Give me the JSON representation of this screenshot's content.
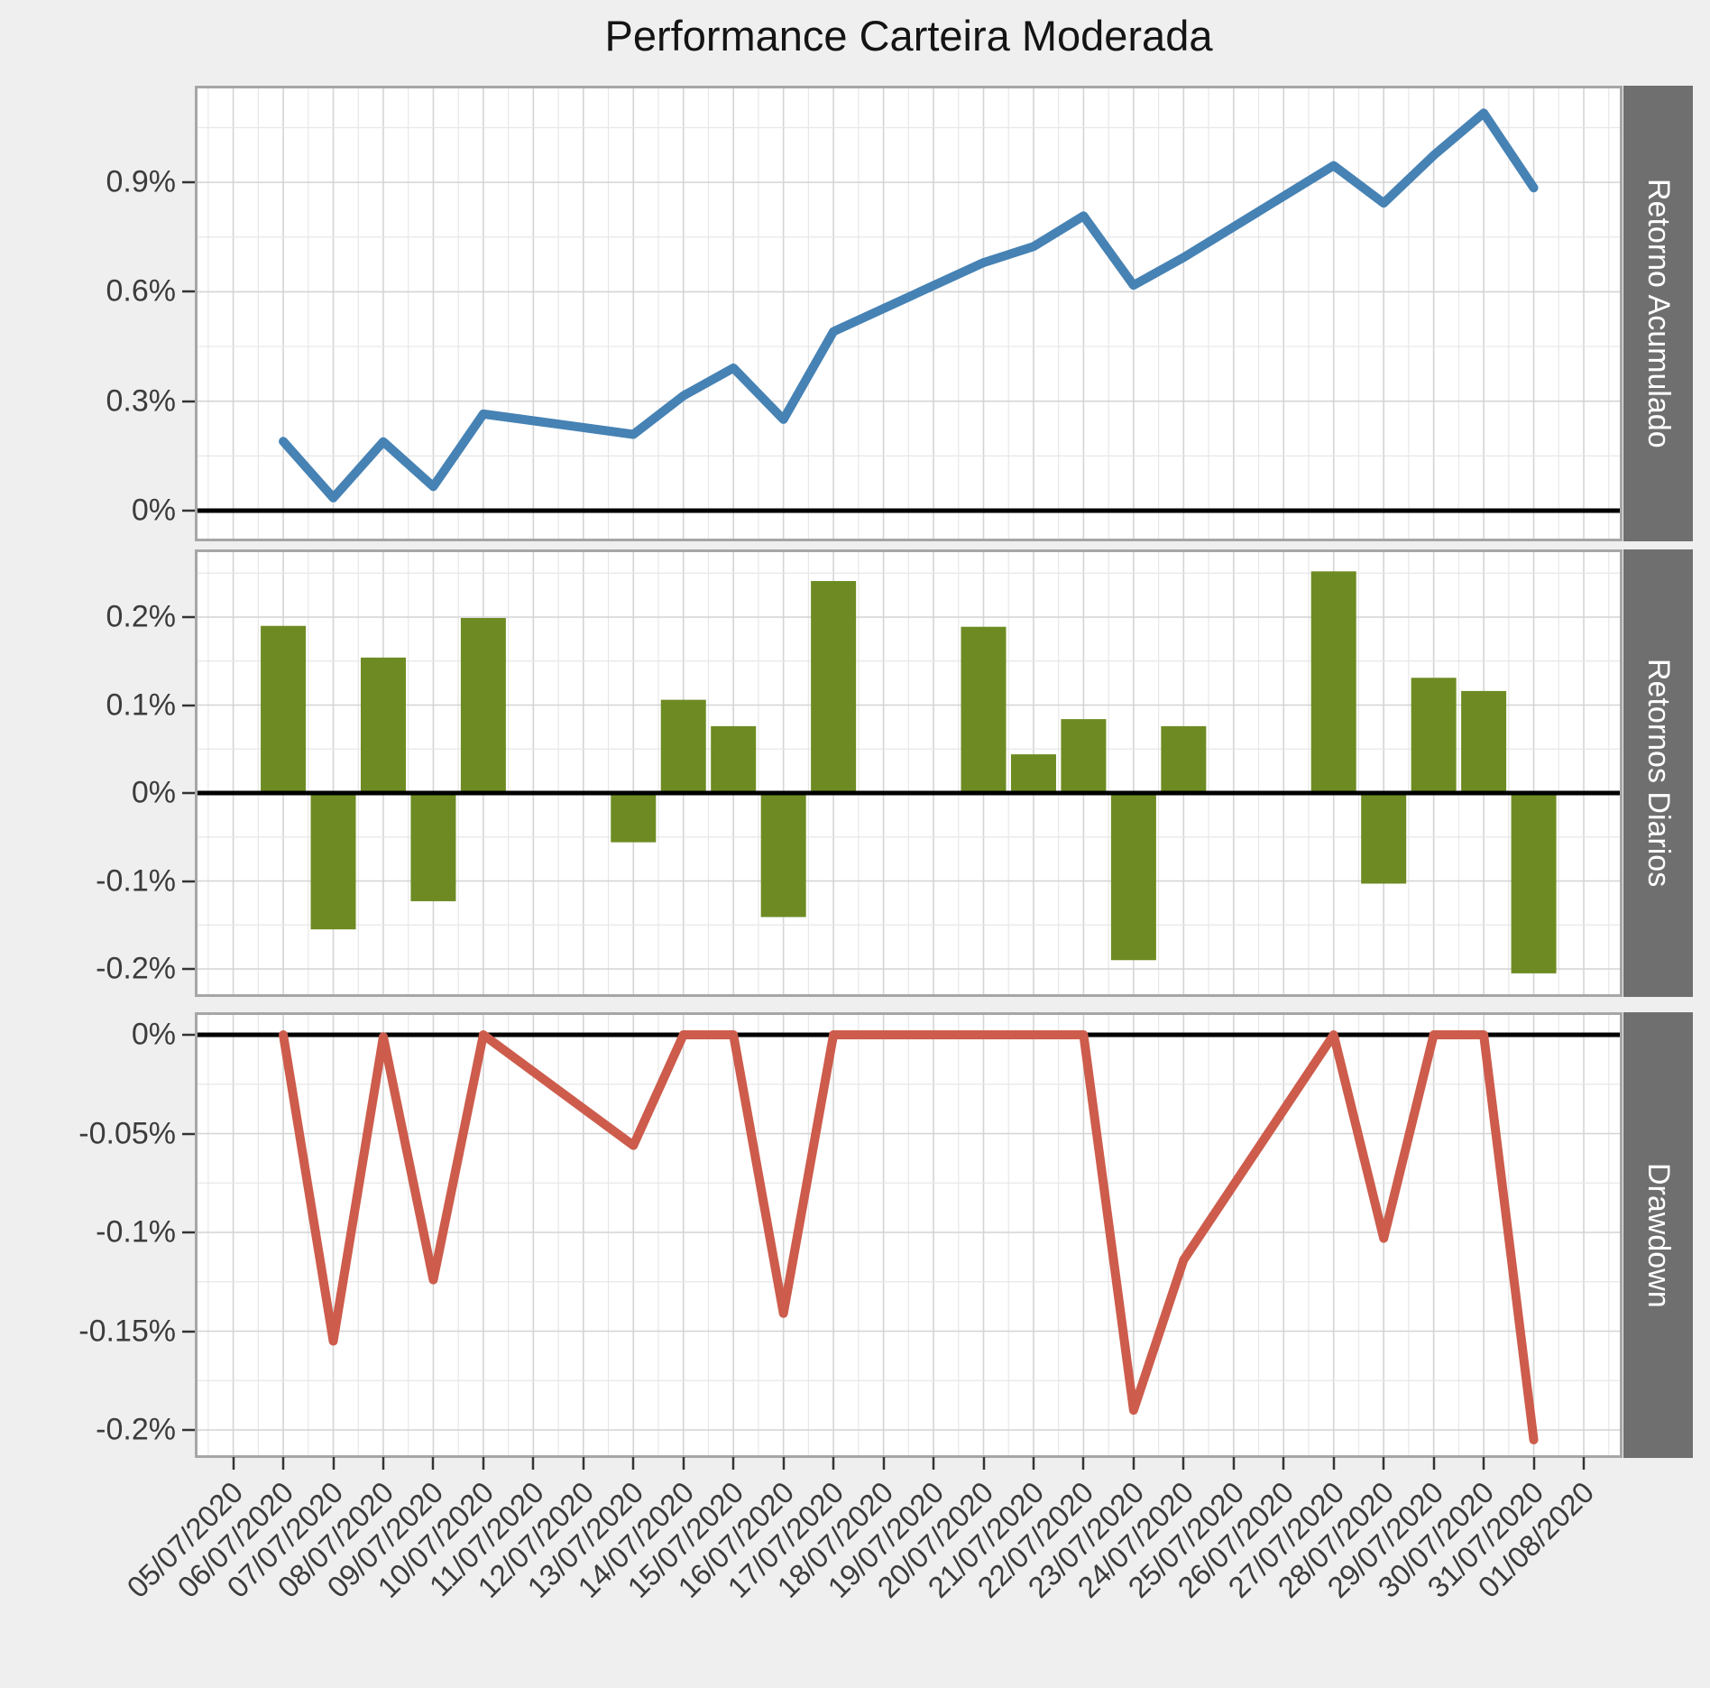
{
  "title": "Performance Carteira Moderada",
  "colors": {
    "figure_background": "#EFEFEF",
    "panel_background": "#FFFFFF",
    "panel_border": "#A6A6A6",
    "strip_background": "#6F6F6F",
    "strip_text": "#FFFFFF",
    "grid_major": "#D4D4D4",
    "grid_minor": "#E7E7E7",
    "zero_line": "#000000",
    "axis_text": "#3C3C3C",
    "tick_mark": "#333333",
    "line_acumulado": "#4682B4",
    "bar_diarios": "#6E8B23",
    "line_drawdown": "#CD5C4C"
  },
  "x_axis": {
    "dates": [
      "05/07/2020",
      "06/07/2020",
      "07/07/2020",
      "08/07/2020",
      "09/07/2020",
      "10/07/2020",
      "11/07/2020",
      "12/07/2020",
      "13/07/2020",
      "14/07/2020",
      "15/07/2020",
      "16/07/2020",
      "17/07/2020",
      "18/07/2020",
      "19/07/2020",
      "20/07/2020",
      "21/07/2020",
      "22/07/2020",
      "23/07/2020",
      "24/07/2020",
      "25/07/2020",
      "26/07/2020",
      "27/07/2020",
      "28/07/2020",
      "29/07/2020",
      "30/07/2020",
      "31/07/2020",
      "01/08/2020"
    ]
  },
  "chart_data": [
    {
      "type": "line",
      "facet_label": "Retorno Acumulado",
      "x": [
        "06/07/2020",
        "07/07/2020",
        "08/07/2020",
        "09/07/2020",
        "10/07/2020",
        "13/07/2020",
        "14/07/2020",
        "15/07/2020",
        "16/07/2020",
        "17/07/2020",
        "20/07/2020",
        "21/07/2020",
        "22/07/2020",
        "23/07/2020",
        "24/07/2020",
        "27/07/2020",
        "28/07/2020",
        "29/07/2020",
        "30/07/2020",
        "31/07/2020"
      ],
      "values": [
        0.19,
        0.035,
        0.189,
        0.066,
        0.265,
        0.209,
        0.315,
        0.391,
        0.25,
        0.491,
        0.68,
        0.724,
        0.808,
        0.618,
        0.694,
        0.946,
        0.843,
        0.974,
        1.09,
        0.885
      ],
      "unit": "%",
      "ylim": [
        -0.07,
        1.16
      ],
      "yticks": [
        {
          "label": "0.9%",
          "value": 0.9
        },
        {
          "label": "0.6%",
          "value": 0.6
        },
        {
          "label": "0.3%",
          "value": 0.3
        },
        {
          "label": "0%",
          "value": 0.0
        }
      ],
      "yticks_minor": [
        1.05,
        0.75,
        0.45,
        0.15
      ],
      "zero_line": true,
      "grid": true,
      "legend": "none"
    },
    {
      "type": "bar",
      "facet_label": "Retornos Diarios",
      "x": [
        "06/07/2020",
        "07/07/2020",
        "08/07/2020",
        "09/07/2020",
        "10/07/2020",
        "13/07/2020",
        "14/07/2020",
        "15/07/2020",
        "16/07/2020",
        "17/07/2020",
        "20/07/2020",
        "21/07/2020",
        "22/07/2020",
        "23/07/2020",
        "24/07/2020",
        "27/07/2020",
        "28/07/2020",
        "29/07/2020",
        "30/07/2020",
        "31/07/2020"
      ],
      "values": [
        0.19,
        -0.155,
        0.154,
        -0.123,
        0.199,
        -0.056,
        0.106,
        0.076,
        -0.141,
        0.241,
        0.189,
        0.044,
        0.084,
        -0.19,
        0.076,
        0.252,
        -0.103,
        0.131,
        0.116,
        -0.205
      ],
      "unit": "%",
      "ylim": [
        -0.229,
        0.274
      ],
      "yticks": [
        {
          "label": "0.2%",
          "value": 0.2
        },
        {
          "label": "0.1%",
          "value": 0.1
        },
        {
          "label": "0%",
          "value": 0.0
        },
        {
          "label": "-0.1%",
          "value": -0.1
        },
        {
          "label": "-0.2%",
          "value": -0.2
        }
      ],
      "yticks_minor": [
        0.25,
        0.15,
        0.05,
        -0.05,
        -0.15
      ],
      "zero_line": true,
      "grid": true,
      "legend": "none"
    },
    {
      "type": "line",
      "facet_label": "Drawdown",
      "x": [
        "06/07/2020",
        "07/07/2020",
        "08/07/2020",
        "09/07/2020",
        "10/07/2020",
        "13/07/2020",
        "14/07/2020",
        "15/07/2020",
        "16/07/2020",
        "17/07/2020",
        "20/07/2020",
        "21/07/2020",
        "22/07/2020",
        "23/07/2020",
        "24/07/2020",
        "27/07/2020",
        "28/07/2020",
        "29/07/2020",
        "30/07/2020",
        "31/07/2020"
      ],
      "values": [
        0.0,
        -0.155,
        -0.001,
        -0.124,
        0.0,
        -0.056,
        0.0,
        0.0,
        -0.141,
        0.0,
        0.0,
        0.0,
        0.0,
        -0.19,
        -0.114,
        0.0,
        -0.103,
        0.0,
        0.0,
        -0.205
      ],
      "unit": "%",
      "ylim": [
        -0.213,
        0.01
      ],
      "yticks": [
        {
          "label": "0%",
          "value": 0.0
        },
        {
          "label": "-0.05%",
          "value": -0.05
        },
        {
          "label": "-0.1%",
          "value": -0.1
        },
        {
          "label": "-0.15%",
          "value": -0.15
        },
        {
          "label": "-0.2%",
          "value": -0.2
        }
      ],
      "yticks_minor": [
        -0.025,
        -0.075,
        -0.125,
        -0.175
      ],
      "zero_line": true,
      "grid": true,
      "legend": "none"
    }
  ]
}
